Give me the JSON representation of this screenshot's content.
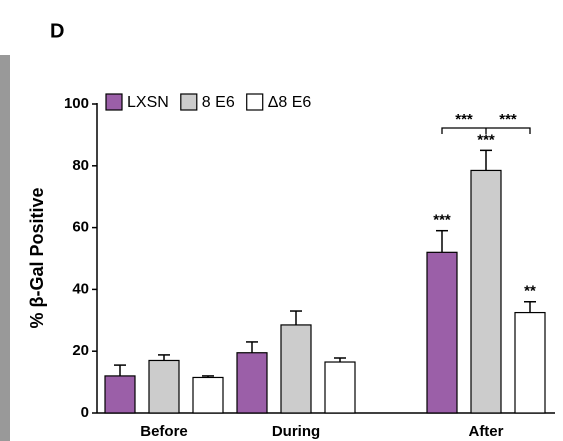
{
  "panel_label": "D",
  "chart_data": {
    "type": "bar",
    "ylabel": "% β-Gal Positive",
    "categories": [
      "Before",
      "During",
      "After"
    ],
    "series": [
      {
        "name": "LXSN",
        "color": "#9b5fa8",
        "values": [
          12,
          19.5,
          52
        ],
        "errors": [
          3.5,
          3.5,
          7
        ]
      },
      {
        "name": "8 E6",
        "color": "#cccccc",
        "values": [
          17,
          28.5,
          78.5
        ],
        "errors": [
          1.8,
          4.5,
          6.5
        ]
      },
      {
        "name": "Δ8 E6",
        "color": "#ffffff",
        "values": [
          11.5,
          16.5,
          32.5
        ],
        "errors": [
          0.5,
          1.3,
          3.5
        ]
      }
    ],
    "significance": [
      "***",
      "***",
      "**"
    ],
    "bracket_labels": [
      "***",
      "***"
    ],
    "ylim": [
      0,
      100
    ],
    "yticks": [
      0,
      20,
      40,
      60,
      80,
      100
    ],
    "grid": false
  }
}
